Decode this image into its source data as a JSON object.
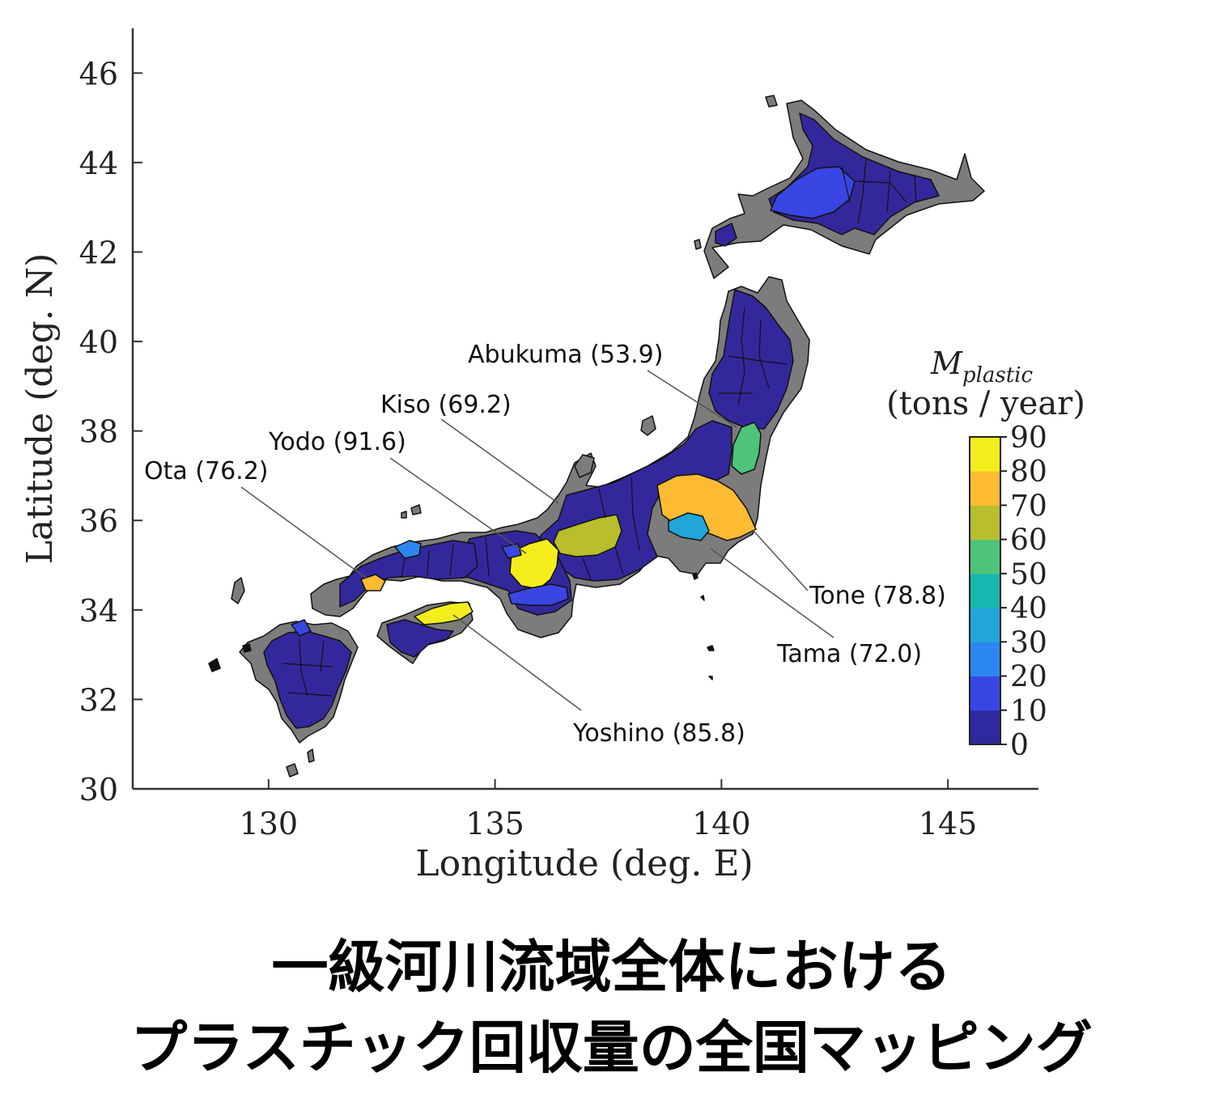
{
  "axes": {
    "xlabel": "Longitude (deg. E)",
    "ylabel": "Latitude (deg. N)",
    "xlim": [
      127,
      147
    ],
    "ylim": [
      30,
      47
    ],
    "xticks": [
      130,
      135,
      140,
      145
    ],
    "yticks": [
      30,
      32,
      34,
      36,
      38,
      40,
      42,
      44,
      46
    ]
  },
  "colorbar": {
    "title": "M",
    "title_subscript": "plastic",
    "unit": "(tons / year)",
    "range": [
      0,
      90
    ],
    "ticks": [
      "90",
      "80",
      "70",
      "60",
      "50",
      "40",
      "30",
      "20",
      "10",
      "0"
    ],
    "colors": [
      "#2d2a9e",
      "#3a46e3",
      "#2b86ef",
      "#20a6d8",
      "#17b7ad",
      "#4ec47a",
      "#b8be2c",
      "#fcbb32",
      "#f3ee1b"
    ]
  },
  "colors": {
    "land_no_data": "#7c7c7c",
    "basin_default": "#33289b",
    "outline": "#111111"
  },
  "rivers": [
    {
      "name": "Abukuma",
      "value": 53.9,
      "label": "Abukuma (53.9)"
    },
    {
      "name": "Kiso",
      "value": 69.2,
      "label": "Kiso (69.2)"
    },
    {
      "name": "Yodo",
      "value": 91.6,
      "label": "Yodo (91.6)"
    },
    {
      "name": "Ota",
      "value": 76.2,
      "label": "Ota (76.2)"
    },
    {
      "name": "Tone",
      "value": 78.8,
      "label": "Tone (78.8)"
    },
    {
      "name": "Tama",
      "value": 72.0,
      "label": "Tama (72.0)"
    },
    {
      "name": "Yoshino",
      "value": 85.8,
      "label": "Yoshino (85.8)"
    }
  ],
  "caption": {
    "line1": "一級河川流域全体における",
    "line2": "プラスチック回収量の全国マッピング"
  }
}
